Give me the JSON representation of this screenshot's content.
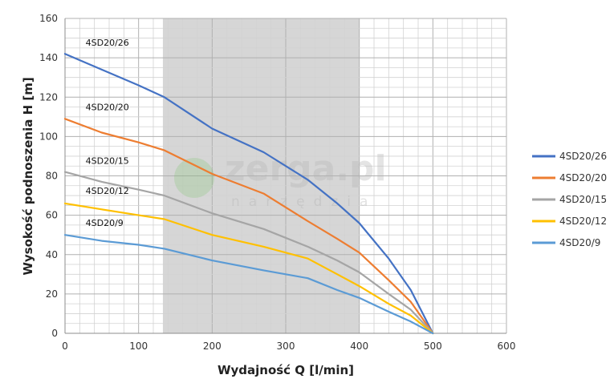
{
  "chart_data": {
    "type": "line",
    "title": "",
    "xlabel": "Wydajność Q [l/min]",
    "ylabel": "Wysokość podnoszenia H [m]",
    "xlim": [
      0,
      600
    ],
    "ylim": [
      0,
      160
    ],
    "x_ticks": [
      "0",
      "100",
      "200",
      "300",
      "400",
      "500",
      "600"
    ],
    "y_ticks": [
      "0",
      "20",
      "40",
      "60",
      "80",
      "100",
      "120",
      "140",
      "160"
    ],
    "grid": true,
    "highlight_range_x": [
      133,
      400
    ],
    "legend_position": "right",
    "watermark": {
      "main": "zerga.pl",
      "sub": "narzędzia"
    },
    "series": [
      {
        "name": "4SD20/26",
        "color": "#4472c4",
        "x": [
          0,
          50,
          100,
          135,
          200,
          270,
          330,
          370,
          400,
          440,
          470,
          500
        ],
        "y": [
          142,
          134,
          126,
          120,
          104,
          92,
          78,
          66,
          56,
          38,
          22,
          0
        ]
      },
      {
        "name": "4SD20/20",
        "color": "#ed7d31",
        "x": [
          0,
          50,
          100,
          135,
          200,
          270,
          330,
          370,
          400,
          440,
          470,
          500
        ],
        "y": [
          109,
          102,
          97,
          93,
          81,
          71,
          57,
          48,
          41,
          27,
          16,
          0
        ]
      },
      {
        "name": "4SD20/15",
        "color": "#a5a5a5",
        "x": [
          0,
          50,
          100,
          135,
          200,
          270,
          330,
          370,
          400,
          440,
          470,
          500
        ],
        "y": [
          82,
          77,
          73,
          70,
          61,
          53,
          44,
          37,
          31,
          20,
          12,
          0
        ]
      },
      {
        "name": "4SD20/12",
        "color": "#ffc000",
        "x": [
          0,
          50,
          100,
          135,
          200,
          270,
          330,
          370,
          400,
          440,
          470,
          500
        ],
        "y": [
          66,
          63,
          60,
          58,
          50,
          44,
          38,
          30,
          24,
          15,
          9,
          0
        ]
      },
      {
        "name": "4SD20/9",
        "color": "#5b9bd5",
        "x": [
          0,
          50,
          100,
          135,
          200,
          270,
          330,
          370,
          400,
          440,
          470,
          500
        ],
        "y": [
          50,
          47,
          45,
          43,
          37,
          32,
          28,
          22,
          18,
          11,
          6,
          0
        ]
      }
    ]
  }
}
